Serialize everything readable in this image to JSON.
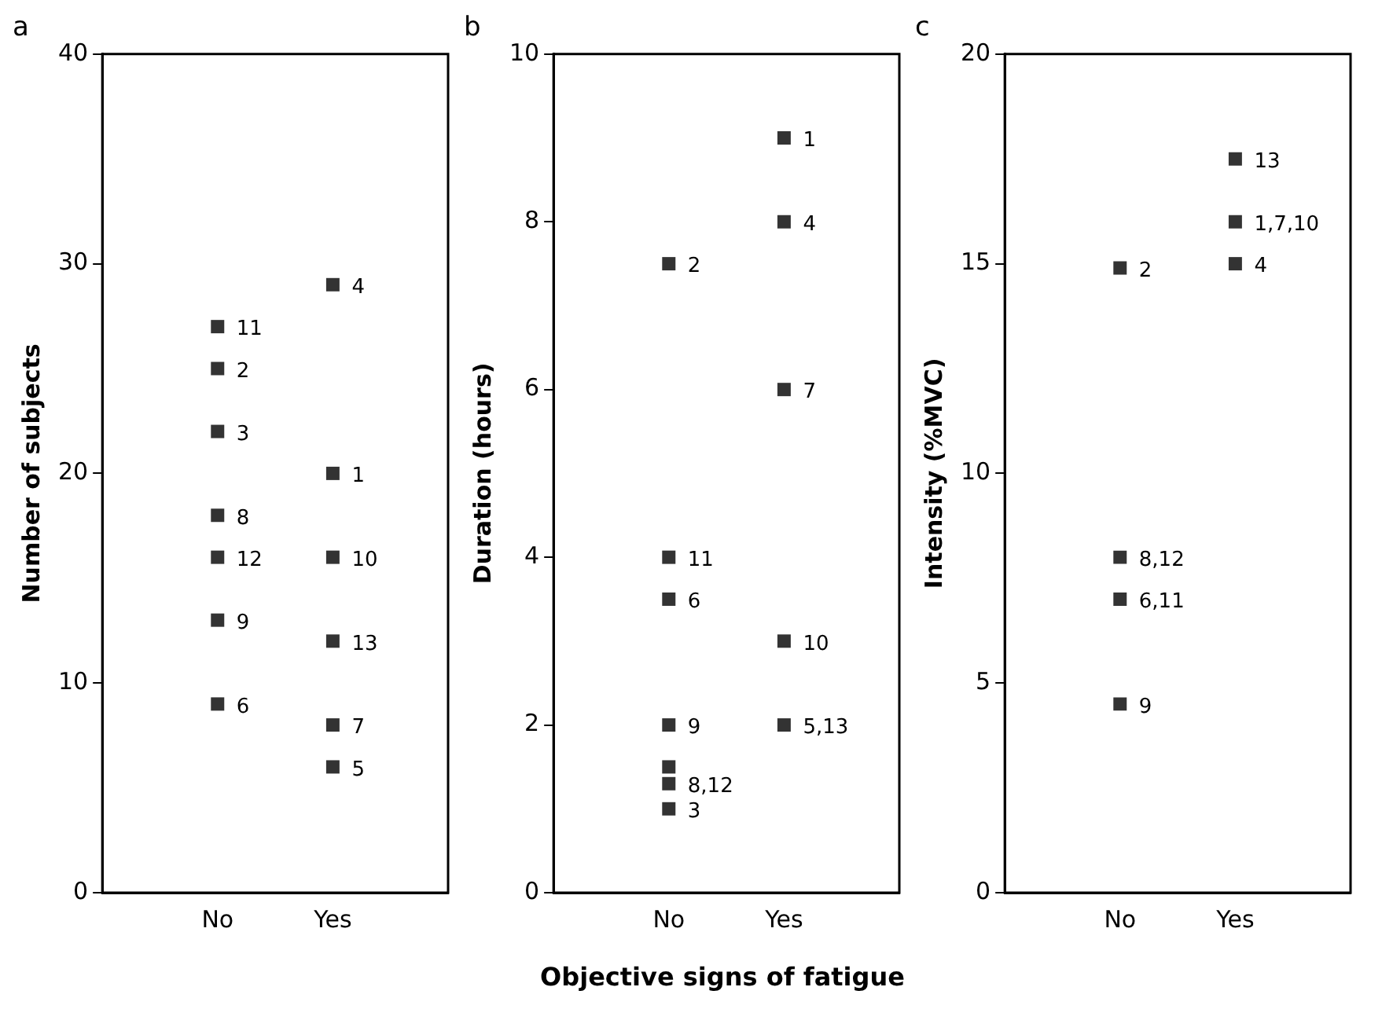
{
  "chart_data": [
    {
      "type": "scatter",
      "title": "a",
      "ylabel": "Number of subjects",
      "categories": [
        "No",
        "Yes"
      ],
      "ylim": [
        0,
        40
      ],
      "yticks": [
        0,
        10,
        20,
        30,
        40
      ],
      "grid": false,
      "legend": false,
      "marker": "square",
      "series": [
        {
          "color": "#333333",
          "x": [
            "No",
            "No",
            "No",
            "No",
            "No",
            "No",
            "No",
            "Yes",
            "Yes",
            "Yes",
            "Yes",
            "Yes",
            "Yes"
          ],
          "values": [
            27,
            25,
            22,
            18,
            16,
            13,
            9,
            29,
            20,
            16,
            12,
            8,
            6
          ]
        }
      ],
      "annotations": [
        {
          "text": "11",
          "x": "No",
          "y": 27
        },
        {
          "text": "2",
          "x": "No",
          "y": 25
        },
        {
          "text": "3",
          "x": "No",
          "y": 22
        },
        {
          "text": "8",
          "x": "No",
          "y": 18
        },
        {
          "text": "12",
          "x": "No",
          "y": 16
        },
        {
          "text": "9",
          "x": "No",
          "y": 13
        },
        {
          "text": "6",
          "x": "No",
          "y": 9
        },
        {
          "text": "4",
          "x": "Yes",
          "y": 29
        },
        {
          "text": "1",
          "x": "Yes",
          "y": 20
        },
        {
          "text": "10",
          "x": "Yes",
          "y": 16
        },
        {
          "text": "13",
          "x": "Yes",
          "y": 12
        },
        {
          "text": "7",
          "x": "Yes",
          "y": 8
        },
        {
          "text": "5",
          "x": "Yes",
          "y": 6
        }
      ]
    },
    {
      "type": "scatter",
      "title": "b",
      "ylabel": "Duration (hours)",
      "xlabel": "Objective signs of fatigue",
      "categories": [
        "No",
        "Yes"
      ],
      "ylim": [
        0,
        10
      ],
      "yticks": [
        0,
        2,
        4,
        6,
        8,
        10
      ],
      "grid": false,
      "legend": false,
      "marker": "square",
      "series": [
        {
          "color": "#333333",
          "x": [
            "No",
            "No",
            "No",
            "No",
            "No",
            "No",
            "No",
            "Yes",
            "Yes",
            "Yes",
            "Yes",
            "Yes"
          ],
          "values": [
            7.5,
            4,
            3.5,
            2,
            1.5,
            1.3,
            1,
            9,
            8,
            6,
            3,
            2
          ]
        }
      ],
      "annotations": [
        {
          "text": "2",
          "x": "No",
          "y": 7.5
        },
        {
          "text": "11",
          "x": "No",
          "y": 4
        },
        {
          "text": "6",
          "x": "No",
          "y": 3.5
        },
        {
          "text": "9",
          "x": "No",
          "y": 2
        },
        {
          "text": "8,12",
          "x": "No",
          "y": 1.3
        },
        {
          "text": "3",
          "x": "No",
          "y": 1
        },
        {
          "text": "1",
          "x": "Yes",
          "y": 9
        },
        {
          "text": "4",
          "x": "Yes",
          "y": 8
        },
        {
          "text": "7",
          "x": "Yes",
          "y": 6
        },
        {
          "text": "10",
          "x": "Yes",
          "y": 3
        },
        {
          "text": "5,13",
          "x": "Yes",
          "y": 2
        }
      ]
    },
    {
      "type": "scatter",
      "title": "c",
      "ylabel": "Intensity (%MVC)",
      "categories": [
        "No",
        "Yes"
      ],
      "ylim": [
        0,
        20
      ],
      "yticks": [
        0,
        5,
        10,
        15,
        20
      ],
      "grid": false,
      "legend": false,
      "marker": "square",
      "series": [
        {
          "color": "#333333",
          "x": [
            "No",
            "No",
            "No",
            "No",
            "Yes",
            "Yes",
            "Yes"
          ],
          "values": [
            14.9,
            8,
            7,
            4.5,
            17.5,
            16,
            15
          ]
        }
      ],
      "annotations": [
        {
          "text": "2",
          "x": "No",
          "y": 14.9
        },
        {
          "text": "8,12",
          "x": "No",
          "y": 8
        },
        {
          "text": "6,11",
          "x": "No",
          "y": 7
        },
        {
          "text": "9",
          "x": "No",
          "y": 4.5
        },
        {
          "text": "13",
          "x": "Yes",
          "y": 17.5
        },
        {
          "text": "1,7,10",
          "x": "Yes",
          "y": 16
        },
        {
          "text": "4",
          "x": "Yes",
          "y": 15
        }
      ]
    }
  ]
}
